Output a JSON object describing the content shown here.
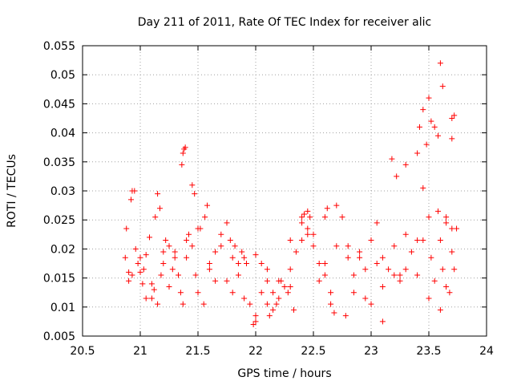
{
  "chart_data": {
    "type": "scatter",
    "title": "Day 211 of 2011, Rate Of TEC Index for receiver alic",
    "xlabel": "GPS time / hours",
    "ylabel": "ROTI / TECUs",
    "xlim": [
      20.5,
      24
    ],
    "ylim": [
      0.005,
      0.055
    ],
    "xticks": [
      "20.5",
      "21",
      "21.5",
      "22",
      "22.5",
      "23",
      "23.5",
      "24"
    ],
    "yticks": [
      "0.005",
      "0.01",
      "0.015",
      "0.02",
      "0.025",
      "0.03",
      "0.035",
      "0.04",
      "0.045",
      "0.05",
      "0.055"
    ],
    "grid": true,
    "legend": "none",
    "marker": "plus",
    "series": [
      {
        "color": "#ff0000",
        "x": [
          20.87,
          20.88,
          20.9,
          20.92,
          20.93,
          20.95,
          20.96,
          20.98,
          21.0,
          21.02,
          21.03,
          21.05,
          21.08,
          21.1,
          21.12,
          21.15,
          21.18,
          21.2,
          21.22,
          21.25,
          21.28,
          21.3,
          21.33,
          21.35,
          21.37,
          21.4,
          21.42,
          21.45,
          21.48,
          21.5,
          21.55,
          21.6,
          21.65,
          21.7,
          21.75,
          21.8,
          21.85,
          21.9,
          21.95,
          22.0,
          22.05,
          22.1,
          22.15,
          22.2,
          22.25,
          22.3,
          22.35,
          22.4,
          22.45,
          22.5,
          22.55,
          22.6,
          22.65,
          22.7,
          22.75,
          22.8,
          22.85,
          22.9,
          22.95,
          23.0,
          23.05,
          23.1,
          23.15,
          23.2,
          23.25,
          23.3,
          23.35,
          23.4,
          23.45,
          23.5,
          23.52,
          23.55,
          23.58,
          23.6,
          23.62,
          23.65,
          23.68,
          23.7,
          23.72,
          23.74,
          20.9,
          21.0,
          21.1,
          21.2,
          21.3,
          21.4,
          21.5,
          21.6,
          21.7,
          21.8,
          21.9,
          22.0,
          22.1,
          22.2,
          22.3,
          22.4,
          22.5,
          22.6,
          22.7,
          22.8,
          22.9,
          23.0,
          23.1,
          23.2,
          23.3,
          23.4,
          23.5,
          23.6,
          23.7,
          21.05,
          21.25,
          21.45,
          21.65,
          21.85,
          22.05,
          22.25,
          22.45,
          22.65,
          22.85,
          23.05,
          23.25,
          23.45,
          23.65,
          20.93,
          21.36,
          21.37,
          21.38,
          21.39,
          23.5,
          23.52,
          23.55,
          23.6,
          23.62,
          23.7,
          23.72,
          23.58,
          23.48,
          23.22,
          23.18,
          23.42,
          23.45,
          21.47,
          21.98,
          22.0,
          22.15,
          22.1,
          22.12,
          22.18,
          22.55,
          22.6,
          22.62,
          22.68,
          22.78,
          22.95,
          23.1,
          23.3,
          23.4,
          23.65,
          23.7,
          21.52,
          21.56,
          21.58,
          21.15,
          21.13,
          21.17,
          22.4,
          22.42,
          22.45,
          22.47,
          21.75,
          21.78,
          21.82,
          21.88,
          21.92,
          22.22,
          22.28,
          22.3,
          22.33
        ],
        "y": [
          0.0185,
          0.0235,
          0.0145,
          0.0285,
          0.0155,
          0.03,
          0.02,
          0.0175,
          0.016,
          0.014,
          0.0165,
          0.019,
          0.022,
          0.0115,
          0.013,
          0.0105,
          0.0155,
          0.0195,
          0.0215,
          0.0205,
          0.0165,
          0.0185,
          0.0155,
          0.0125,
          0.0105,
          0.0185,
          0.0225,
          0.031,
          0.0155,
          0.0125,
          0.0105,
          0.0175,
          0.0195,
          0.0205,
          0.0145,
          0.0125,
          0.0155,
          0.0185,
          0.0105,
          0.0085,
          0.0175,
          0.0145,
          0.0125,
          0.0115,
          0.0135,
          0.0165,
          0.0195,
          0.0215,
          0.0235,
          0.0205,
          0.0145,
          0.0175,
          0.0125,
          0.0205,
          0.0255,
          0.0185,
          0.0155,
          0.0195,
          0.0165,
          0.0215,
          0.0245,
          0.0185,
          0.0165,
          0.0205,
          0.0145,
          0.0225,
          0.0195,
          0.0155,
          0.0215,
          0.0255,
          0.0185,
          0.0145,
          0.0265,
          0.0215,
          0.0165,
          0.0245,
          0.0125,
          0.0195,
          0.0165,
          0.0235,
          0.016,
          0.0185,
          0.014,
          0.0175,
          0.0195,
          0.0215,
          0.0235,
          0.0165,
          0.0225,
          0.0185,
          0.0115,
          0.019,
          0.0105,
          0.0145,
          0.0215,
          0.0245,
          0.0225,
          0.0155,
          0.0275,
          0.0205,
          0.0185,
          0.0105,
          0.0135,
          0.0155,
          0.0165,
          0.0215,
          0.0115,
          0.0095,
          0.0235,
          0.0115,
          0.0135,
          0.0205,
          0.0145,
          0.0175,
          0.0125,
          0.0135,
          0.0225,
          0.0105,
          0.0125,
          0.0175,
          0.0155,
          0.0305,
          0.0135,
          0.03,
          0.0345,
          0.0365,
          0.0372,
          0.0375,
          0.046,
          0.042,
          0.041,
          0.052,
          0.048,
          0.0425,
          0.043,
          0.0395,
          0.038,
          0.0325,
          0.0355,
          0.041,
          0.044,
          0.0295,
          0.007,
          0.0075,
          0.0095,
          0.0165,
          0.0085,
          0.0105,
          0.0175,
          0.0255,
          0.027,
          0.009,
          0.0085,
          0.0115,
          0.0075,
          0.0345,
          0.0365,
          0.0255,
          0.039,
          0.0235,
          0.0255,
          0.0275,
          0.0295,
          0.0255,
          0.027,
          0.0255,
          0.026,
          0.0265,
          0.0255,
          0.0245,
          0.0215,
          0.0205,
          0.0195,
          0.0175,
          0.0145,
          0.0125,
          0.0135,
          0.0095
        ]
      }
    ]
  }
}
